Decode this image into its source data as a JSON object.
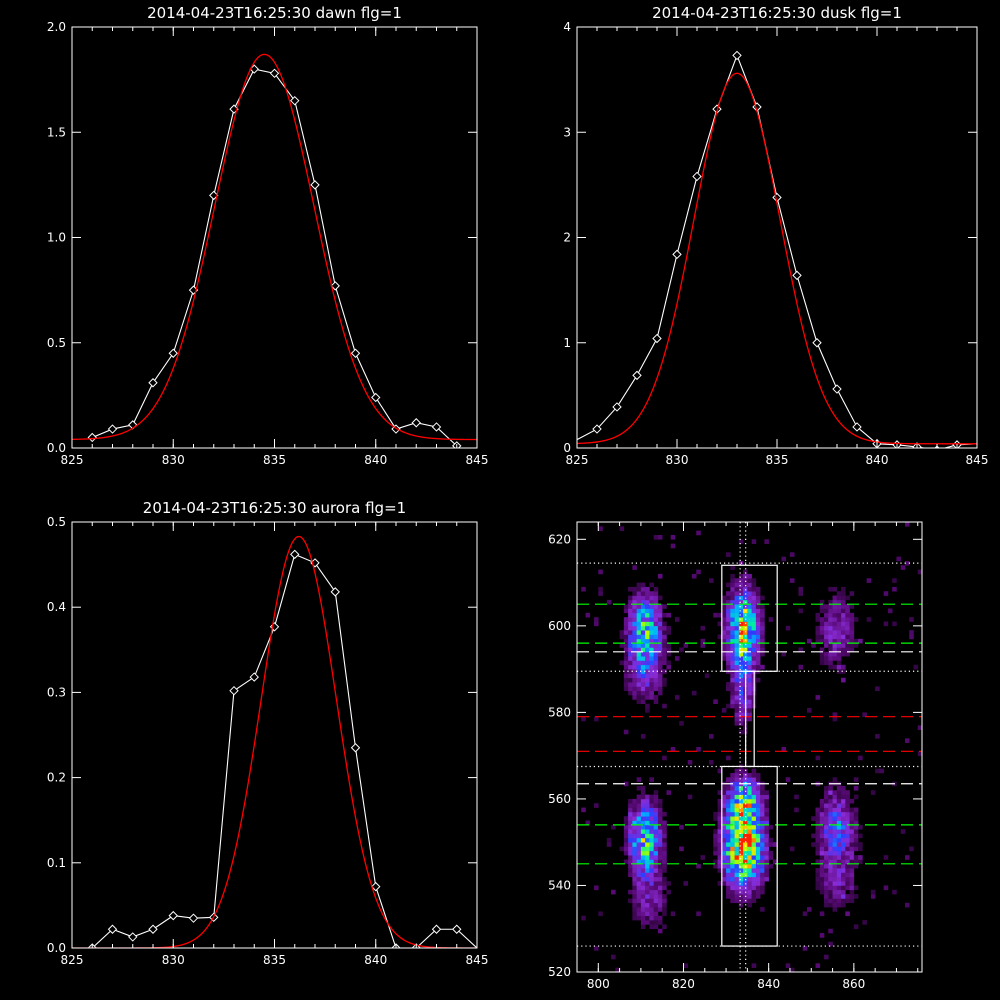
{
  "chart_data": [
    {
      "type": "line",
      "title": "2014-04-23T16:25:30 dawn flg=1",
      "xlim": [
        825,
        845
      ],
      "ylim": [
        0,
        2.0
      ],
      "xticks": [
        "825",
        "830",
        "835",
        "840",
        "845"
      ],
      "xtick_values": [
        825,
        830,
        835,
        840,
        845
      ],
      "yticks": [
        "0.0",
        "0.5",
        "1.0",
        "1.5",
        "2.0"
      ],
      "ytick_values": [
        0,
        0.5,
        1.0,
        1.5,
        2.0
      ],
      "series": [
        {
          "color": "#ffffff",
          "markers": "diamond",
          "x": [
            826,
            827,
            828,
            829,
            830,
            831,
            832,
            833,
            834,
            835,
            836,
            837,
            838,
            839,
            840,
            841,
            842,
            843,
            844
          ],
          "y": [
            0.05,
            0.09,
            0.11,
            0.31,
            0.45,
            0.75,
            1.2,
            1.61,
            1.8,
            1.78,
            1.65,
            1.25,
            0.77,
            0.45,
            0.24,
            0.09,
            0.12,
            0.1,
            0.01
          ]
        },
        {
          "color": "#ff0000",
          "fit": "gaussian",
          "amplitude": 1.83,
          "center": 834.5,
          "sigma": 2.45,
          "offset": 0.04
        }
      ]
    },
    {
      "type": "line",
      "title": "2014-04-23T16:25:30 dusk flg=1",
      "xlim": [
        825,
        845
      ],
      "ylim": [
        0,
        4
      ],
      "xticks": [
        "825",
        "830",
        "835",
        "840",
        "845"
      ],
      "xtick_values": [
        825,
        830,
        835,
        840,
        845
      ],
      "yticks": [
        "0",
        "1",
        "2",
        "3",
        "4"
      ],
      "ytick_values": [
        0,
        1,
        2,
        3,
        4
      ],
      "series": [
        {
          "color": "#ffffff",
          "markers": "diamond",
          "x": [
            825,
            826,
            827,
            828,
            829,
            830,
            831,
            832,
            833,
            834,
            835,
            836,
            837,
            838,
            839,
            840,
            841,
            842,
            843,
            844,
            845
          ],
          "y": [
            0.08,
            0.18,
            0.39,
            0.69,
            1.04,
            1.84,
            2.58,
            3.22,
            3.73,
            3.24,
            2.38,
            1.64,
            1.0,
            0.56,
            0.2,
            0.04,
            0.03,
            0.01,
            -0.02,
            0.03,
            0.04
          ],
          "marker_x": [
            826,
            827,
            828,
            829,
            830,
            831,
            832,
            833,
            834,
            835,
            836,
            837,
            838,
            839,
            840,
            841,
            842,
            843,
            844
          ]
        },
        {
          "color": "#ff0000",
          "fit": "gaussian",
          "amplitude": 3.52,
          "center": 833.0,
          "sigma": 2.15,
          "offset": 0.04
        }
      ]
    },
    {
      "type": "line",
      "title": "2014-04-23T16:25:30 aurora flg=1",
      "xlim": [
        825,
        845
      ],
      "ylim": [
        0,
        0.5
      ],
      "xticks": [
        "825",
        "830",
        "835",
        "840",
        "845"
      ],
      "xtick_values": [
        825,
        830,
        835,
        840,
        845
      ],
      "yticks": [
        "0.0",
        "0.1",
        "0.2",
        "0.3",
        "0.4",
        "0.5"
      ],
      "ytick_values": [
        0,
        0.1,
        0.2,
        0.3,
        0.4,
        0.5
      ],
      "series": [
        {
          "color": "#ffffff",
          "markers": "diamond",
          "x": [
            826,
            827,
            828,
            829,
            830,
            831,
            832,
            833,
            834,
            835,
            836,
            837,
            838,
            839,
            840,
            841,
            842,
            843,
            844,
            845
          ],
          "y": [
            0.0,
            0.022,
            0.013,
            0.022,
            0.038,
            0.035,
            0.036,
            0.302,
            0.318,
            0.377,
            0.462,
            0.452,
            0.418,
            0.235,
            0.072,
            0.0,
            0.0,
            0.022,
            0.022,
            0.0
          ],
          "marker_x": [
            826,
            827,
            828,
            829,
            830,
            831,
            832,
            833,
            834,
            835,
            836,
            837,
            838,
            839,
            840,
            841,
            842,
            843,
            844
          ]
        },
        {
          "color": "#ff0000",
          "fit": "gaussian",
          "amplitude": 0.483,
          "center": 836.2,
          "sigma": 1.85,
          "offset": 0.0
        }
      ]
    },
    {
      "type": "heatmap",
      "title": "",
      "xlim": [
        795,
        876
      ],
      "ylim": [
        520,
        624
      ],
      "xticks": [
        "800",
        "820",
        "840",
        "860"
      ],
      "xtick_values": [
        800,
        820,
        840,
        860
      ],
      "yticks": [
        "520",
        "540",
        "560",
        "580",
        "600",
        "620"
      ],
      "ytick_values": [
        520,
        540,
        560,
        580,
        600,
        620
      ],
      "colormap": [
        "#000000",
        "#5a0a78",
        "#8a2bd6",
        "#2e3cff",
        "#00b4ff",
        "#00f0a0",
        "#aaff00",
        "#ffe000",
        "#ff2000"
      ],
      "blobs": [
        {
          "x": 811,
          "y": 599,
          "sx": 2.6,
          "sy": 5.5,
          "peak": 0.55
        },
        {
          "x": 811,
          "y": 589,
          "sx": 3.0,
          "sy": 5.0,
          "peak": 0.22
        },
        {
          "x": 811,
          "y": 551,
          "sx": 2.5,
          "sy": 5.5,
          "peak": 0.62
        },
        {
          "x": 812,
          "y": 537,
          "sx": 3.0,
          "sy": 5.0,
          "peak": 0.18
        },
        {
          "x": 834,
          "y": 599,
          "sx": 2.4,
          "sy": 6.0,
          "peak": 0.78
        },
        {
          "x": 834,
          "y": 584,
          "sx": 2.0,
          "sy": 5.0,
          "peak": 0.25
        },
        {
          "x": 834,
          "y": 549,
          "sx": 3.0,
          "sy": 6.0,
          "peak": 1.0
        },
        {
          "x": 834,
          "y": 560,
          "sx": 2.5,
          "sy": 3.5,
          "peak": 0.55
        },
        {
          "x": 856,
          "y": 599,
          "sx": 3.0,
          "sy": 6.0,
          "peak": 0.22
        },
        {
          "x": 856,
          "y": 553,
          "sx": 3.0,
          "sy": 6.0,
          "peak": 0.35
        },
        {
          "x": 856,
          "y": 540,
          "sx": 3.0,
          "sy": 4.0,
          "peak": 0.15
        }
      ],
      "hlines": [
        {
          "y": 614.5,
          "color": "#ffffff",
          "style": "dotted"
        },
        {
          "y": 605,
          "color": "#00ff00",
          "style": "dashed"
        },
        {
          "y": 596,
          "color": "#00ff00",
          "style": "dashed"
        },
        {
          "y": 594,
          "color": "#ffffff",
          "style": "dashed"
        },
        {
          "y": 589.5,
          "color": "#ffffff",
          "style": "dotted"
        },
        {
          "y": 579,
          "color": "#ff0000",
          "style": "dashed"
        },
        {
          "y": 571,
          "color": "#ff0000",
          "style": "dashed"
        },
        {
          "y": 567.5,
          "color": "#ffffff",
          "style": "dotted"
        },
        {
          "y": 563.5,
          "color": "#ffffff",
          "style": "dashed"
        },
        {
          "y": 554,
          "color": "#00ff00",
          "style": "dashed"
        },
        {
          "y": 545,
          "color": "#00ff00",
          "style": "dashed"
        },
        {
          "y": 526,
          "color": "#ffffff",
          "style": "dotted"
        }
      ],
      "vlines": [
        {
          "x": 833.3,
          "color": "#ffffff",
          "style": "dotted"
        },
        {
          "x": 834.6,
          "color": "#ffffff",
          "style": "dotted"
        }
      ],
      "boxes": [
        {
          "x0": 829,
          "x1": 842,
          "y0": 589.5,
          "y1": 614
        },
        {
          "x0": 829,
          "x1": 842,
          "y0": 526,
          "y1": 567.5
        },
        {
          "x0": 834.6,
          "x1": 836.6,
          "y0": 567.5,
          "y1": 589.5
        }
      ]
    }
  ]
}
